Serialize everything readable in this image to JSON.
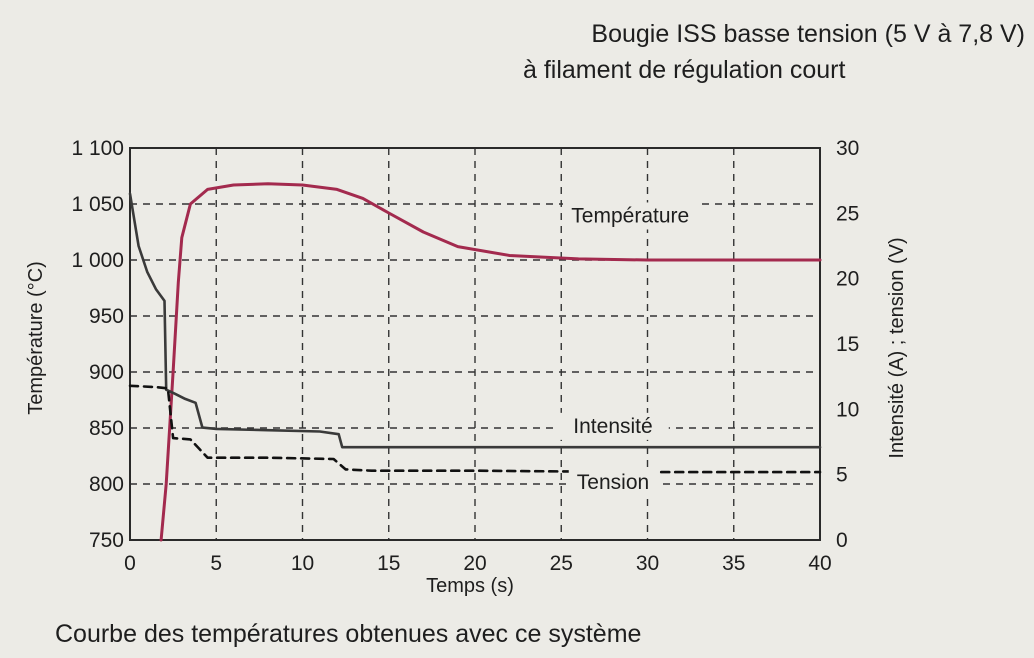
{
  "chart_data": {
    "type": "line",
    "title": [
      "Bougie ISS basse tension (5 V à 7,8 V)",
      "à filament de régulation court"
    ],
    "caption": "Courbe des températures obtenues avec ce système",
    "xlabel": "Temps (s)",
    "ylabel_left": "Température (°C)",
    "ylabel_right": "Intensité (A) ; tension (V)",
    "xlim": [
      0,
      40
    ],
    "ylim_left": [
      750,
      1100
    ],
    "ylim_right": [
      0,
      30
    ],
    "x_ticks": [
      "0",
      "5",
      "10",
      "15",
      "20",
      "25",
      "30",
      "35",
      "40"
    ],
    "y_left_ticks": [
      "750",
      "800",
      "850",
      "900",
      "950",
      "1 000",
      "1 050",
      "1 100"
    ],
    "y_right_ticks": [
      "0",
      "5",
      "10",
      "15",
      "20",
      "25",
      "30"
    ],
    "grid": true,
    "series": [
      {
        "name": "Température",
        "axis": "left",
        "color": "#a32a4e",
        "style": "solid",
        "points": [
          [
            1.8,
            750
          ],
          [
            2.1,
            800
          ],
          [
            2.5,
            900
          ],
          [
            2.8,
            980
          ],
          [
            3.0,
            1020
          ],
          [
            3.5,
            1050
          ],
          [
            4.5,
            1063
          ],
          [
            6,
            1067
          ],
          [
            8,
            1068
          ],
          [
            10,
            1067
          ],
          [
            12,
            1063
          ],
          [
            13.5,
            1055
          ],
          [
            15,
            1042
          ],
          [
            17,
            1025
          ],
          [
            19,
            1012
          ],
          [
            22,
            1004
          ],
          [
            26,
            1001
          ],
          [
            30,
            1000
          ],
          [
            35,
            1000
          ],
          [
            40,
            1000
          ]
        ]
      },
      {
        "name": "Intensité",
        "axis": "right",
        "color": "#3a3a3a",
        "style": "solid",
        "points": [
          [
            0,
            26.5
          ],
          [
            0.5,
            22.5
          ],
          [
            1,
            20.5
          ],
          [
            1.5,
            19.2
          ],
          [
            2,
            18.3
          ],
          [
            2.1,
            11.5
          ],
          [
            2.6,
            11.2
          ],
          [
            3.2,
            10.8
          ],
          [
            3.8,
            10.5
          ],
          [
            4.2,
            8.6
          ],
          [
            5,
            8.5
          ],
          [
            8,
            8.4
          ],
          [
            11,
            8.3
          ],
          [
            12.1,
            8.1
          ],
          [
            12.3,
            7.1
          ],
          [
            14,
            7.1
          ],
          [
            20,
            7.1
          ],
          [
            30,
            7.1
          ],
          [
            40,
            7.1
          ]
        ]
      },
      {
        "name": "Tension",
        "axis": "right",
        "color": "#111111",
        "style": "dashed",
        "points": [
          [
            0,
            11.8
          ],
          [
            1.5,
            11.7
          ],
          [
            2.2,
            11.6
          ],
          [
            2.5,
            7.8
          ],
          [
            3.5,
            7.7
          ],
          [
            4.0,
            7.0
          ],
          [
            4.5,
            6.3
          ],
          [
            8,
            6.3
          ],
          [
            11.8,
            6.2
          ],
          [
            12.5,
            5.4
          ],
          [
            14,
            5.3
          ],
          [
            20,
            5.3
          ],
          [
            30,
            5.2
          ],
          [
            40,
            5.2
          ]
        ]
      }
    ],
    "series_labels": [
      {
        "text": "Température",
        "x": 29,
        "y_right": 24.3
      },
      {
        "text": "Intensité",
        "x": 28,
        "y_right": 8.2
      },
      {
        "text": "Tension",
        "x": 28,
        "y_right": 3.9
      }
    ]
  }
}
